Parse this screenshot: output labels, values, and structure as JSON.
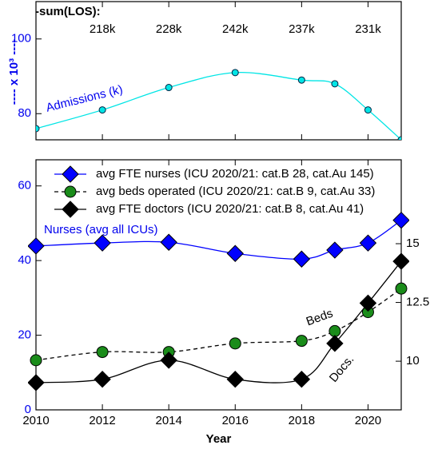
{
  "chart_data": [
    {
      "type": "line",
      "ylabel": "---- x 10³ ----",
      "annotation": "Admissions (k)",
      "los": {
        "label": "-sum(LOS):",
        "x": [
          2012,
          2014,
          2016,
          2018,
          2020
        ],
        "values": [
          218,
          228,
          242,
          237,
          231
        ],
        "value_labels": [
          "218k",
          "228k",
          "242k",
          "237k",
          "231k"
        ]
      },
      "x": [
        2010,
        2012,
        2014,
        2016,
        2018,
        2019,
        2020,
        2021
      ],
      "xlim": [
        2010,
        2021
      ],
      "xticks": [
        2010,
        2012,
        2014,
        2016,
        2018,
        2020
      ],
      "ylim": [
        73,
        110
      ],
      "yticks": [
        80,
        100
      ],
      "series": [
        {
          "name": "Admissions (k)",
          "color": "#00e5e5",
          "values": [
            76,
            81,
            87,
            91,
            89,
            88,
            81,
            73
          ]
        }
      ]
    },
    {
      "type": "line",
      "xlabel": "Year",
      "x": [
        2010,
        2012,
        2014,
        2016,
        2018,
        2019,
        2020,
        2021
      ],
      "xlim": [
        2010,
        2021
      ],
      "xticks": [
        2010,
        2012,
        2014,
        2016,
        2018,
        2020
      ],
      "ylim": [
        0,
        67
      ],
      "yticks": [
        0,
        20,
        40,
        60
      ],
      "y2lim": [
        7.93,
        18.57
      ],
      "y2ticks": [
        10,
        12.5,
        15
      ],
      "annotations": [
        "Nurses (avg all ICUs)",
        "Beds",
        "Docs."
      ],
      "series": [
        {
          "name": "avg FTE nurses (ICU 2020/21: cat.B 28, cat.Au 145)",
          "color": "#0000ff",
          "values": [
            43.9,
            44.7,
            44.9,
            41.9,
            40.4,
            42.8,
            44.7,
            50.8
          ]
        },
        {
          "name": "avg beds operated (ICU 2020/21: cat.B 9, cat.Au 33)",
          "color": "#1a8c1a",
          "values": [
            13.3,
            15.5,
            15.5,
            17.8,
            18.5,
            21.1,
            26.2,
            32.5
          ]
        },
        {
          "name": "avg FTE doctors (ICU 2020/21: cat.B 8, cat.Au 41)",
          "color": "#000000",
          "values": [
            7.3,
            8.2,
            13.3,
            8.2,
            8.2,
            17.8,
            28.6,
            39.8
          ]
        }
      ]
    }
  ]
}
